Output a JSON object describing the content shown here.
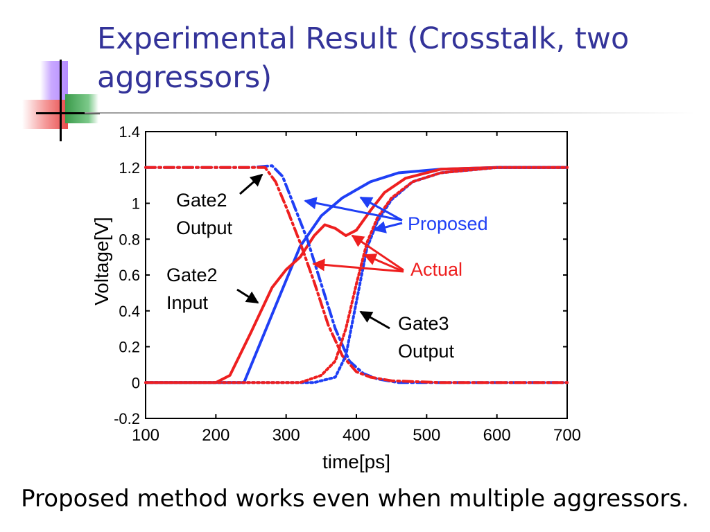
{
  "slide": {
    "title": "Experimental Result (Crosstalk, two aggressors)",
    "caption": "Proposed method works even when multiple aggressors."
  },
  "colors": {
    "title": "#333399",
    "proposed": "#1f3ff5",
    "actual": "#ee1f1f"
  },
  "chart_data": {
    "type": "line",
    "title": "",
    "xlabel": "time[ps]",
    "ylabel": "Voltage[V]",
    "xlim": [
      100,
      700
    ],
    "ylim": [
      -0.2,
      1.4
    ],
    "xticks": [
      "100",
      "200",
      "300",
      "400",
      "500",
      "600",
      "700"
    ],
    "yticks": [
      "-0.2",
      "0",
      "0.2",
      "0.4",
      "0.6",
      "0.8",
      "1",
      "1.2",
      "1.4"
    ],
    "grid": false,
    "series": [
      {
        "name": "Gate2 Input",
        "method": "Proposed",
        "style": "solid",
        "x": [
          100,
          240,
          280,
          320,
          350,
          380,
          420,
          460,
          520,
          600,
          700
        ],
        "y": [
          0,
          0,
          0.38,
          0.76,
          0.93,
          1.03,
          1.12,
          1.17,
          1.19,
          1.2,
          1.2
        ]
      },
      {
        "name": "Gate2 Input",
        "method": "Actual",
        "style": "solid",
        "x": [
          100,
          200,
          220,
          250,
          280,
          300,
          320,
          340,
          355,
          370,
          385,
          400,
          420,
          440,
          470,
          520,
          600,
          700
        ],
        "y": [
          0,
          0,
          0.04,
          0.28,
          0.53,
          0.63,
          0.7,
          0.82,
          0.88,
          0.86,
          0.82,
          0.85,
          0.96,
          1.06,
          1.14,
          1.19,
          1.2,
          1.2
        ]
      },
      {
        "name": "Gate2 Output",
        "method": "Proposed",
        "style": "dashdot",
        "x": [
          100,
          250,
          280,
          295,
          310,
          330,
          350,
          370,
          390,
          410,
          430,
          460,
          520,
          700
        ],
        "y": [
          1.2,
          1.2,
          1.21,
          1.15,
          1.0,
          0.8,
          0.55,
          0.3,
          0.12,
          0.05,
          0.02,
          0.0,
          0.0,
          0.0
        ]
      },
      {
        "name": "Gate2 Output",
        "method": "Actual",
        "style": "dashdot",
        "x": [
          100,
          250,
          270,
          285,
          300,
          320,
          340,
          360,
          380,
          400,
          420,
          450,
          520,
          700
        ],
        "y": [
          1.2,
          1.2,
          1.2,
          1.12,
          0.98,
          0.78,
          0.56,
          0.32,
          0.15,
          0.06,
          0.03,
          0.01,
          0.0,
          0.0
        ]
      },
      {
        "name": "Gate3 Output",
        "method": "Proposed",
        "style": "dotted",
        "x": [
          100,
          340,
          370,
          385,
          400,
          415,
          430,
          450,
          480,
          520,
          600,
          700
        ],
        "y": [
          0,
          0,
          0.03,
          0.15,
          0.45,
          0.75,
          0.9,
          1.02,
          1.12,
          1.17,
          1.2,
          1.2
        ]
      },
      {
        "name": "Gate3 Output",
        "method": "Actual",
        "style": "dotted",
        "x": [
          100,
          320,
          350,
          370,
          385,
          400,
          415,
          430,
          450,
          480,
          520,
          600,
          700
        ],
        "y": [
          0,
          0,
          0.04,
          0.12,
          0.3,
          0.55,
          0.78,
          0.92,
          1.03,
          1.12,
          1.17,
          1.2,
          1.2
        ]
      }
    ],
    "annotations": {
      "gate2_output": [
        "Gate2",
        "Output"
      ],
      "gate2_input": [
        "Gate2",
        "Input"
      ],
      "gate3_output": [
        "Gate3",
        "Output"
      ],
      "proposed": "Proposed",
      "actual": "Actual"
    }
  }
}
